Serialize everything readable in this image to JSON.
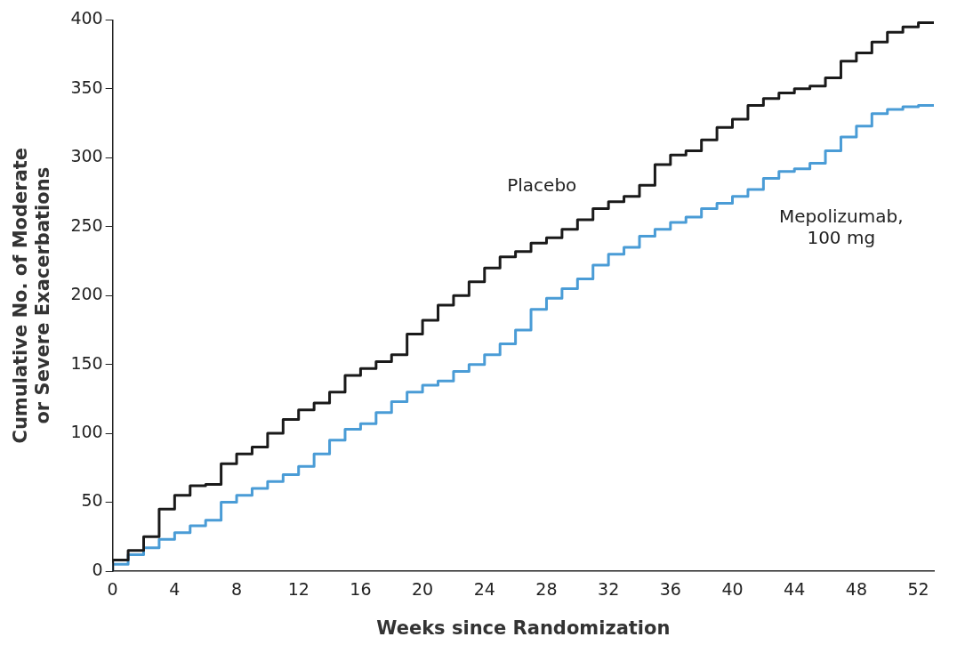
{
  "chart_data": {
    "type": "step",
    "xlabel": "Weeks since Randomization",
    "ylabel": "Cumulative No. of Moderate\nor Severe Exacerbations",
    "xlim": [
      0,
      53
    ],
    "xticks": [
      0,
      4,
      8,
      12,
      16,
      20,
      24,
      28,
      32,
      36,
      40,
      44,
      48,
      52
    ],
    "ylim": [
      0,
      400
    ],
    "yticks": [
      0,
      50,
      100,
      150,
      200,
      250,
      300,
      350,
      400
    ],
    "x": [
      0,
      1,
      2,
      3,
      4,
      5,
      6,
      7,
      8,
      9,
      10,
      11,
      12,
      13,
      14,
      15,
      16,
      17,
      18,
      19,
      20,
      21,
      22,
      23,
      24,
      25,
      26,
      27,
      28,
      29,
      30,
      31,
      32,
      33,
      34,
      35,
      36,
      37,
      38,
      39,
      40,
      41,
      42,
      43,
      44,
      45,
      46,
      47,
      48,
      49,
      50,
      51,
      52,
      53
    ],
    "series": [
      {
        "name": "Placebo",
        "color": "#1a1a1a",
        "values": [
          0,
          8,
          15,
          25,
          45,
          55,
          62,
          63,
          78,
          85,
          90,
          100,
          110,
          117,
          122,
          130,
          142,
          147,
          152,
          157,
          172,
          182,
          193,
          200,
          210,
          220,
          228,
          232,
          238,
          242,
          248,
          255,
          263,
          268,
          272,
          280,
          295,
          302,
          305,
          313,
          322,
          328,
          338,
          343,
          347,
          350,
          352,
          358,
          370,
          376,
          384,
          391,
          395,
          398
        ]
      },
      {
        "name": "Mepolizumab,\n100 mg",
        "color": "#4a9cd6",
        "values": [
          0,
          5,
          12,
          17,
          23,
          28,
          33,
          37,
          50,
          55,
          60,
          65,
          70,
          76,
          85,
          95,
          103,
          107,
          115,
          123,
          130,
          135,
          138,
          145,
          150,
          157,
          165,
          175,
          190,
          198,
          205,
          212,
          222,
          230,
          235,
          243,
          248,
          253,
          257,
          263,
          267,
          272,
          277,
          285,
          290,
          292,
          296,
          305,
          315,
          323,
          332,
          335,
          337,
          338
        ]
      }
    ],
    "legend": false,
    "grid": false
  }
}
